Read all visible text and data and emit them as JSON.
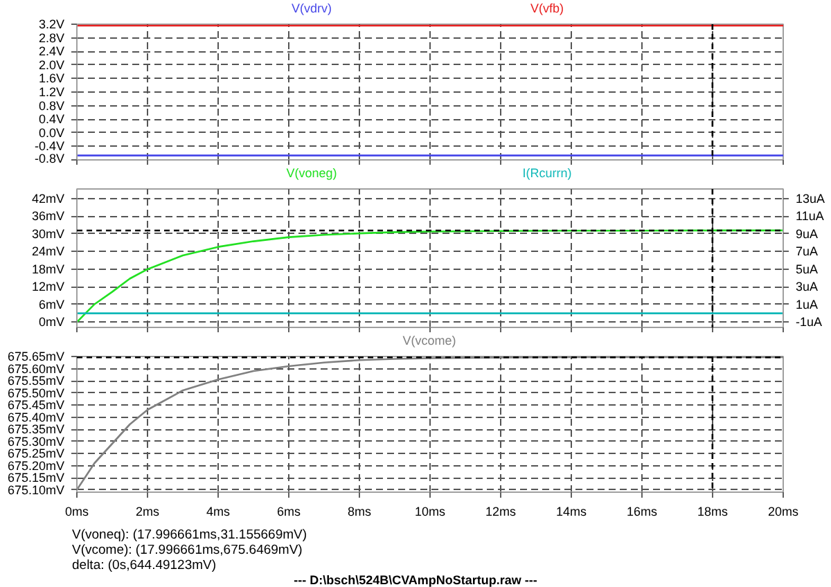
{
  "chart_data": [
    {
      "type": "line",
      "x": [
        0,
        20
      ],
      "xlim": [
        0,
        20
      ],
      "ylim": [
        -0.8,
        3.2
      ],
      "tick_labels": "y",
      "grid": true,
      "line_style": "solid",
      "xticks": [
        {
          "value": 0,
          "label": null
        },
        {
          "value": 2,
          "label": null
        },
        {
          "value": 4,
          "label": null
        },
        {
          "value": 6,
          "label": null
        },
        {
          "value": 8,
          "label": null
        },
        {
          "value": 10,
          "label": null
        },
        {
          "value": 12,
          "label": null
        },
        {
          "value": 14,
          "label": null
        },
        {
          "value": 16,
          "label": null
        },
        {
          "value": 18,
          "label": null
        },
        {
          "value": 20,
          "label": null
        }
      ],
      "yticks": [
        {
          "value": -0.8,
          "label": "-0.8V"
        },
        {
          "value": -0.4,
          "label": "-0.4V"
        },
        {
          "value": 0,
          "label": "0.0V"
        },
        {
          "value": 0.4,
          "label": "0.4V"
        },
        {
          "value": 0.8,
          "label": "0.8V"
        },
        {
          "value": 1.2,
          "label": "1.2V"
        },
        {
          "value": 1.6,
          "label": "1.6V"
        },
        {
          "value": 2.0,
          "label": "2.0V"
        },
        {
          "value": 2.4,
          "label": "2.4V"
        },
        {
          "value": 2.8,
          "label": "2.8V"
        },
        {
          "value": 3.2,
          "label": "3.2V"
        }
      ],
      "series": [
        {
          "name": "V(vdrv)",
          "color": "#4848e8",
          "values": [
            -0.67,
            -0.67
          ]
        },
        {
          "name": "V(vfb)",
          "color": "#e82020",
          "values": [
            3.16,
            3.16
          ]
        }
      ],
      "ref_lines": [
        {
          "axis": "x",
          "value": 17.996661,
          "color": "#000000",
          "line_style": "dashed"
        }
      ]
    },
    {
      "type": "line",
      "xlim": [
        0,
        20
      ],
      "ylim": [
        -1.8,
        45.3
      ],
      "y2lim": [
        -1.6,
        14.1
      ],
      "tick_labels": "y",
      "grid": true,
      "line_style": "solid",
      "xticks": [
        {
          "value": 0,
          "label": null
        },
        {
          "value": 2,
          "label": null
        },
        {
          "value": 4,
          "label": null
        },
        {
          "value": 6,
          "label": null
        },
        {
          "value": 8,
          "label": null
        },
        {
          "value": 10,
          "label": null
        },
        {
          "value": 12,
          "label": null
        },
        {
          "value": 14,
          "label": null
        },
        {
          "value": 16,
          "label": null
        },
        {
          "value": 18,
          "label": null
        },
        {
          "value": 20,
          "label": null
        }
      ],
      "yticks": [
        {
          "value": 0,
          "label": "0mV"
        },
        {
          "value": 6,
          "label": "6mV"
        },
        {
          "value": 12,
          "label": "12mV"
        },
        {
          "value": 18,
          "label": "18mV"
        },
        {
          "value": 24,
          "label": "24mV"
        },
        {
          "value": 30,
          "label": "30mV"
        },
        {
          "value": 36,
          "label": "36mV"
        },
        {
          "value": 42,
          "label": "42mV"
        }
      ],
      "y2ticks": [
        {
          "value": -1,
          "label": "-1uA"
        },
        {
          "value": 1,
          "label": "1uA"
        },
        {
          "value": 3,
          "label": "3uA"
        },
        {
          "value": 5,
          "label": "5uA"
        },
        {
          "value": 7,
          "label": "7uA"
        },
        {
          "value": 9,
          "label": "9uA"
        },
        {
          "value": 11,
          "label": "11uA"
        },
        {
          "value": 13,
          "label": "13uA"
        }
      ],
      "series": [
        {
          "name": "V(voneg)",
          "color": "#22e022",
          "x": [
            0,
            0.5,
            1,
            1.5,
            2,
            3,
            4,
            5,
            6,
            7,
            8,
            9,
            10,
            12,
            14,
            16,
            18,
            20
          ],
          "values": [
            0,
            6.1,
            10.3,
            14.8,
            18.0,
            22.7,
            25.6,
            27.5,
            28.9,
            29.7,
            30.2,
            30.6,
            30.8,
            31.0,
            31.1,
            31.1,
            31.2,
            31.2
          ]
        },
        {
          "name": "I(Rcurrn)",
          "color": "#10b8b8",
          "axis": "y2",
          "x": [
            0,
            20
          ],
          "values": [
            0,
            0
          ]
        }
      ],
      "ref_lines": [
        {
          "axis": "x",
          "value": 17.996661,
          "color": "#000000",
          "line_style": "dashed"
        },
        {
          "axis": "y",
          "value": 31.155669,
          "color": "#000000",
          "line_style": "dashed"
        }
      ]
    },
    {
      "type": "line",
      "xlim": [
        0,
        20
      ],
      "ylim": [
        675.09,
        675.65
      ],
      "grid": true,
      "line_style": "solid",
      "xticks": [
        {
          "value": 0,
          "label": "0ms"
        },
        {
          "value": 2,
          "label": "2ms"
        },
        {
          "value": 4,
          "label": "4ms"
        },
        {
          "value": 6,
          "label": "6ms"
        },
        {
          "value": 8,
          "label": "8ms"
        },
        {
          "value": 10,
          "label": "10ms"
        },
        {
          "value": 12,
          "label": "12ms"
        },
        {
          "value": 14,
          "label": "14ms"
        },
        {
          "value": 16,
          "label": "16ms"
        },
        {
          "value": 18,
          "label": "18ms"
        },
        {
          "value": 20,
          "label": "20ms"
        }
      ],
      "yticks": [
        {
          "value": 675.1,
          "label": "675.10mV"
        },
        {
          "value": 675.15,
          "label": "675.15mV"
        },
        {
          "value": 675.2,
          "label": "675.20mV"
        },
        {
          "value": 675.25,
          "label": "675.25mV"
        },
        {
          "value": 675.3,
          "label": "675.30mV"
        },
        {
          "value": 675.35,
          "label": "675.35mV"
        },
        {
          "value": 675.4,
          "label": "675.40mV"
        },
        {
          "value": 675.45,
          "label": "675.45mV"
        },
        {
          "value": 675.5,
          "label": "675.50mV"
        },
        {
          "value": 675.55,
          "label": "675.55mV"
        },
        {
          "value": 675.6,
          "label": "675.60mV"
        },
        {
          "value": 675.65,
          "label": "675.65mV"
        }
      ],
      "series": [
        {
          "name": "V(vcome)",
          "color": "#808080",
          "x": [
            0,
            0.5,
            1,
            1.5,
            2,
            3,
            4,
            5,
            6,
            7,
            8,
            9,
            10,
            12,
            14,
            20
          ],
          "values": [
            675.1,
            675.21,
            675.29,
            675.37,
            675.43,
            675.51,
            675.555,
            675.59,
            675.61,
            675.625,
            675.635,
            675.64,
            675.643,
            675.646,
            675.647,
            675.647
          ]
        }
      ],
      "ref_lines": [
        {
          "axis": "x",
          "value": 17.996661,
          "color": "#000000",
          "line_style": "dashed"
        },
        {
          "axis": "y",
          "value": 675.6469,
          "color": "#000000",
          "line_style": "dashed"
        }
      ],
      "annotations": [
        "V(voneq): (17.996661ms,31.155669mV)",
        "V(vcome): (17.996661ms,675.6469mV)",
        "delta: (0s,644.49123mV)",
        "---  D:\\bsch\\524B\\CVAmpNoStartup.raw  ---"
      ]
    }
  ]
}
